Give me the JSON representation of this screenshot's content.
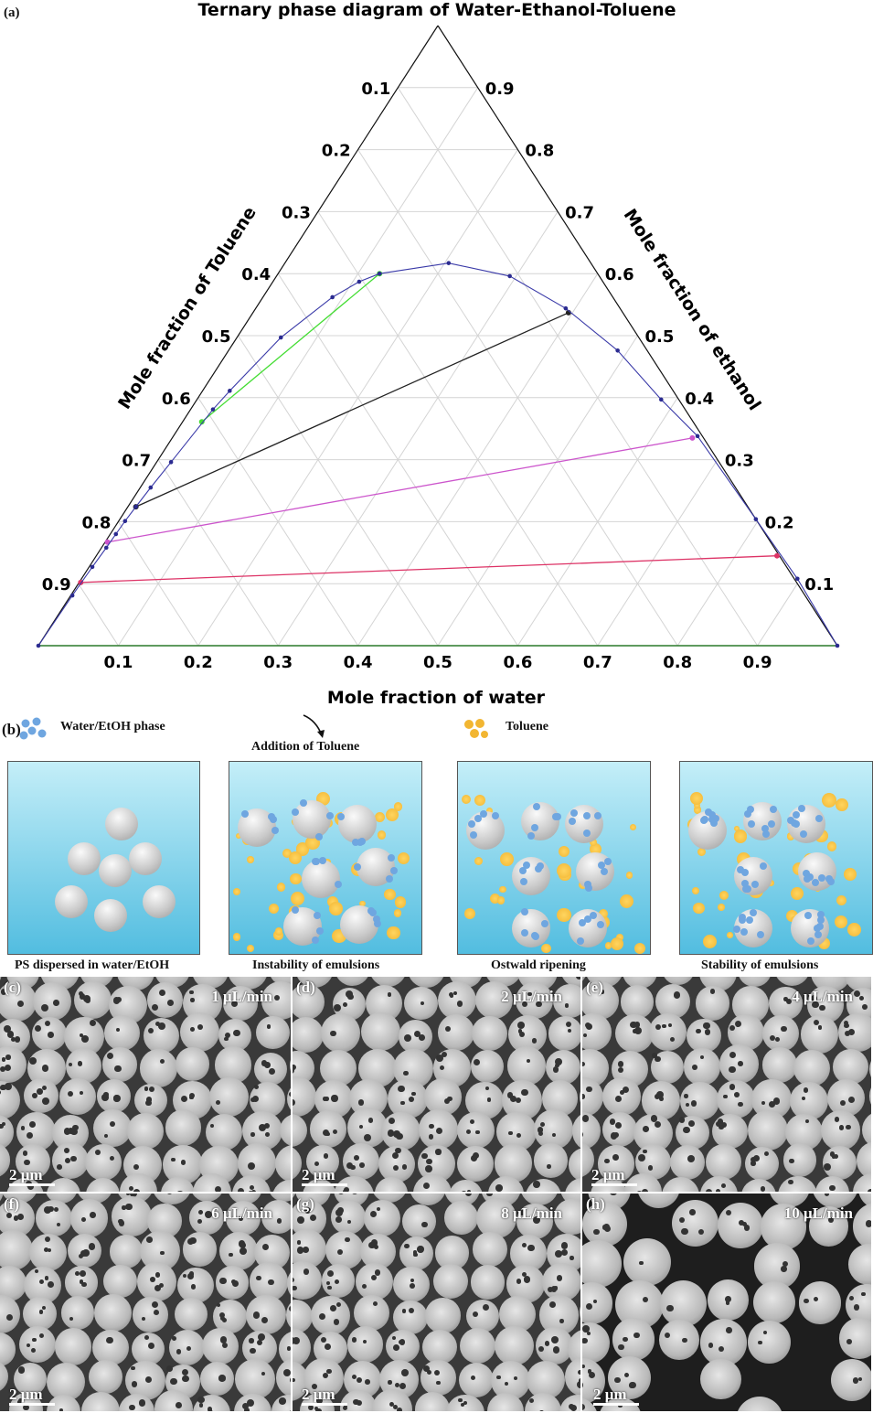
{
  "panel_a_label": "(a)",
  "chart_data": {
    "type": "ternary",
    "title": "Ternary phase diagram of Water-Ethanol-Toluene",
    "axes": {
      "bottom": "Mole fraction of water",
      "left": "Mole fraction of Toluene",
      "right": "Mole fraction of ethanol"
    },
    "ticks": [
      "0.1",
      "0.2",
      "0.3",
      "0.4",
      "0.5",
      "0.6",
      "0.7",
      "0.8",
      "0.9"
    ],
    "grid": true,
    "binodal": {
      "name": "binodal curve",
      "color": "#3a3aa8",
      "points": [
        {
          "water": 0,
          "ethanol": 0
        },
        {
          "water": 0.002,
          "ethanol": 0.081
        },
        {
          "water": 0.004,
          "ethanol": 0.127
        },
        {
          "water": 0.006,
          "ethanol": 0.158
        },
        {
          "water": 0.007,
          "ethanol": 0.18
        },
        {
          "water": 0.008,
          "ethanol": 0.201
        },
        {
          "water": 0.01,
          "ethanol": 0.224
        },
        {
          "water": 0.013,
          "ethanol": 0.255
        },
        {
          "water": 0.018,
          "ethanol": 0.296
        },
        {
          "water": 0.028,
          "ethanol": 0.381
        },
        {
          "water": 0.034,
          "ethanol": 0.411
        },
        {
          "water": 0.055,
          "ethanol": 0.497
        },
        {
          "water": 0.087,
          "ethanol": 0.562
        },
        {
          "water": 0.108,
          "ethanol": 0.587
        },
        {
          "water": 0.127,
          "ethanol": 0.6
        },
        {
          "water": 0.205,
          "ethanol": 0.617
        },
        {
          "water": 0.292,
          "ethanol": 0.596
        },
        {
          "water": 0.388,
          "ethanol": 0.544
        },
        {
          "water": 0.487,
          "ethanol": 0.476
        },
        {
          "water": 0.581,
          "ethanol": 0.397
        },
        {
          "water": 0.656,
          "ethanol": 0.338
        },
        {
          "water": 0.796,
          "ethanol": 0.204
        },
        {
          "water": 0.896,
          "ethanol": 0.108
        },
        {
          "water": 1,
          "ethanol": 0
        }
      ]
    },
    "tie_lines": [
      {
        "color": "#44dd33",
        "from": {
          "water": 0.024,
          "ethanol": 0.361
        },
        "to": {
          "water": 0.127,
          "ethanol": 0.6
        }
      },
      {
        "color": "#222222",
        "from": {
          "water": 0.01,
          "ethanol": 0.224
        },
        "to": {
          "water": 0.395,
          "ethanol": 0.537
        }
      },
      {
        "color": "#cc55cc",
        "from": {
          "water": 0.003,
          "ethanol": 0.167
        },
        "to": {
          "water": 0.651,
          "ethanol": 0.335
        }
      },
      {
        "color": "#dd3366",
        "from": {
          "water": 0.002,
          "ethanol": 0.102
        },
        "to": {
          "water": 0.852,
          "ethanol": 0.145
        }
      }
    ]
  },
  "panel_b": {
    "label": "(b)",
    "legend_water": "Water/EtOH phase",
    "legend_toluene": "Toluene",
    "arrow_label": "Addition of Toluene",
    "stages": [
      "PS dispersed  in water/EtOH",
      "Instability of emulsions",
      "Ostwald ripening",
      "Stability of emulsions"
    ],
    "colors": {
      "water_drop": "#6fa6e0",
      "toluene_drop": "#f2b632",
      "ps_sphere": "#cfcfcf"
    }
  },
  "sem": [
    {
      "label": "(c)",
      "rate": "1 μL/min",
      "scale": "2 μm"
    },
    {
      "label": "(d)",
      "rate": "2 μL/min",
      "scale": "2 μm"
    },
    {
      "label": "(e)",
      "rate": "4 μL/min",
      "scale": "2 μm"
    },
    {
      "label": "(f)",
      "rate": "6 μL/min",
      "scale": "2 μm"
    },
    {
      "label": "(g)",
      "rate": "8 μL/min",
      "scale": "2 μm"
    },
    {
      "label": "(h)",
      "rate": "10 μL/min",
      "scale": "2 μm"
    }
  ]
}
